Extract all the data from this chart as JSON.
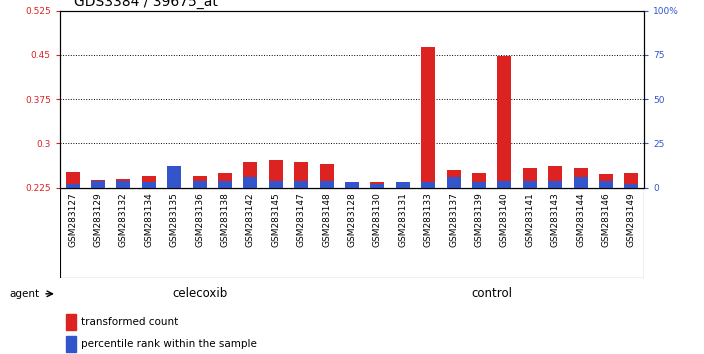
{
  "title": "GDS3384 / 39675_at",
  "samples": [
    "GSM283127",
    "GSM283129",
    "GSM283132",
    "GSM283134",
    "GSM283135",
    "GSM283136",
    "GSM283138",
    "GSM283142",
    "GSM283145",
    "GSM283147",
    "GSM283148",
    "GSM283128",
    "GSM283130",
    "GSM283131",
    "GSM283133",
    "GSM283137",
    "GSM283139",
    "GSM283140",
    "GSM283141",
    "GSM283143",
    "GSM283144",
    "GSM283146",
    "GSM283149"
  ],
  "red_values": [
    0.252,
    0.238,
    0.24,
    0.245,
    0.235,
    0.244,
    0.25,
    0.268,
    0.272,
    0.268,
    0.265,
    0.232,
    0.235,
    0.232,
    0.463,
    0.255,
    0.25,
    0.448,
    0.258,
    0.262,
    0.258,
    0.248,
    0.25
  ],
  "blue_values_pct": [
    2,
    4,
    4,
    3,
    12,
    4,
    4,
    6,
    4,
    4,
    4,
    3,
    2,
    3,
    3,
    6,
    3,
    4,
    4,
    4,
    6,
    4,
    2
  ],
  "celecoxib_count": 11,
  "control_count": 12,
  "ylim_left": [
    0.225,
    0.525
  ],
  "ylim_right": [
    0,
    100
  ],
  "yticks_left": [
    0.225,
    0.3,
    0.375,
    0.45,
    0.525
  ],
  "yticks_right": [
    0,
    25,
    50,
    75,
    100
  ],
  "ytick_labels_left": [
    "0.225",
    "0.3",
    "0.375",
    "0.45",
    "0.525"
  ],
  "ytick_labels_right": [
    "0",
    "25",
    "50",
    "75",
    "100%"
  ],
  "bar_color_red": "#dd2222",
  "bar_color_blue": "#3355cc",
  "celecoxib_color": "#99ee99",
  "control_color": "#44dd44",
  "xticklabel_bg": "#cccccc",
  "agent_label": "agent",
  "celecoxib_label": "celecoxib",
  "control_label": "control",
  "legend_red": "transformed count",
  "legend_blue": "percentile rank within the sample",
  "baseline": 0.225,
  "bar_width": 0.55,
  "title_fontsize": 10,
  "tick_fontsize": 6.5,
  "label_fontsize": 8
}
